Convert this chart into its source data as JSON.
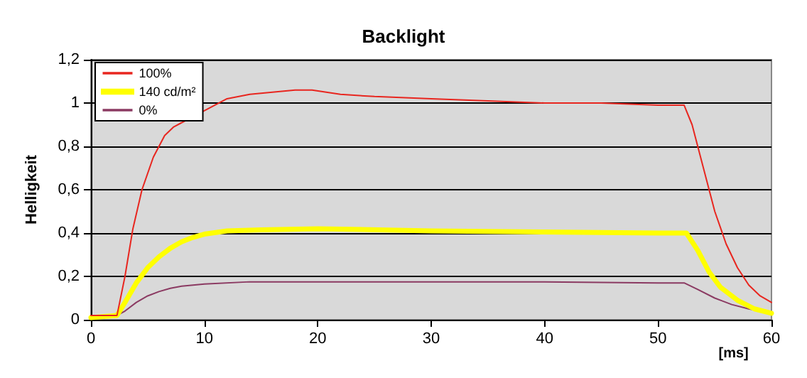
{
  "chart_data": {
    "type": "line",
    "title": "Backlight",
    "xlabel": "[ms]",
    "ylabel": "Helligkeit",
    "xlim": [
      0,
      60
    ],
    "xticks": [
      0,
      10,
      20,
      30,
      40,
      50,
      60
    ],
    "ylim": [
      0,
      1.2
    ],
    "yticks": [
      0,
      {
        "value": 0.2,
        "label": "0,2"
      },
      {
        "value": 0.4,
        "label": "0,4"
      },
      {
        "value": 0.6,
        "label": "0,6"
      },
      {
        "value": 0.8,
        "label": "0,8"
      },
      1,
      {
        "value": 1.2,
        "label": "1,2"
      }
    ],
    "grid": "y",
    "legend": "top left",
    "marker": "none",
    "line_style": "solid",
    "series": [
      {
        "name": "100%",
        "color": "#e8261f",
        "x": [
          0,
          2.3,
          3,
          3.7,
          4.5,
          5.5,
          6.5,
          7.3,
          12,
          14,
          16,
          18,
          19.5,
          22,
          25,
          30,
          35,
          40,
          45,
          50,
          52.3,
          53,
          54,
          55,
          56,
          57,
          58,
          59,
          60
        ],
        "values": [
          0.02,
          0.02,
          0.2,
          0.42,
          0.6,
          0.75,
          0.85,
          0.89,
          1.02,
          1.04,
          1.05,
          1.06,
          1.06,
          1.04,
          1.03,
          1.02,
          1.01,
          1.0,
          1.0,
          0.99,
          0.99,
          0.9,
          0.7,
          0.5,
          0.35,
          0.24,
          0.16,
          0.11,
          0.08
        ]
      },
      {
        "name": "140 cd/m²",
        "color": "#ffff00",
        "x": [
          0,
          2.3,
          3,
          4,
          5,
          6,
          7,
          8,
          9,
          10,
          12,
          15,
          20,
          30,
          40,
          50,
          52.5,
          53.5,
          54.5,
          55.5,
          57,
          58.5,
          60
        ],
        "values": [
          0.01,
          0.02,
          0.08,
          0.17,
          0.24,
          0.29,
          0.33,
          0.36,
          0.38,
          0.395,
          0.41,
          0.415,
          0.42,
          0.41,
          0.405,
          0.4,
          0.4,
          0.32,
          0.22,
          0.15,
          0.09,
          0.05,
          0.03
        ]
      },
      {
        "name": "0%",
        "color": "#8b3a62",
        "x": [
          0,
          2.3,
          3,
          4,
          5,
          6,
          7,
          8,
          10,
          14,
          20,
          30,
          40,
          50,
          52.3,
          53.5,
          55,
          56.5,
          58,
          60
        ],
        "values": [
          0.02,
          0.02,
          0.04,
          0.08,
          0.11,
          0.13,
          0.145,
          0.155,
          0.165,
          0.175,
          0.175,
          0.175,
          0.175,
          0.17,
          0.17,
          0.14,
          0.1,
          0.07,
          0.05,
          0.03
        ]
      }
    ]
  }
}
